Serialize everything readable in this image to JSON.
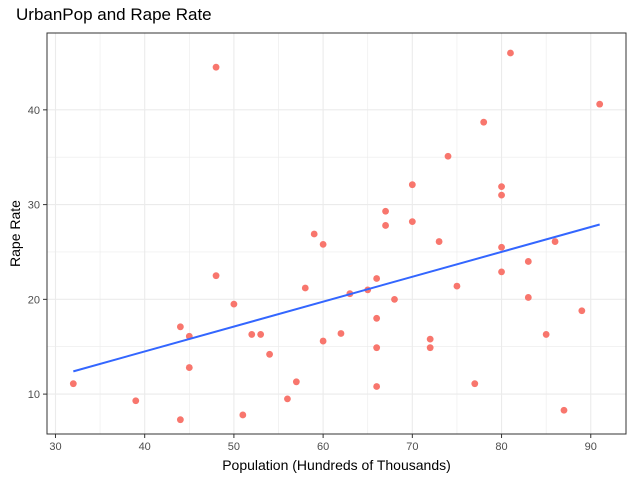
{
  "chart_data": {
    "type": "scatter",
    "title": "UrbanPop and Rape Rate",
    "xlabel": "Population (Hundreds of Thousands)",
    "ylabel": "Rape Rate",
    "xlim": [
      29.05,
      93.95
    ],
    "ylim": [
      5.79,
      48.11
    ],
    "xticks": [
      30,
      40,
      50,
      60,
      70,
      80,
      90
    ],
    "yticks": [
      10,
      20,
      30,
      40
    ],
    "grid": true,
    "point_color": "#F8766D",
    "line_color": "#3366FF",
    "points": [
      {
        "x": 32,
        "y": 11.1
      },
      {
        "x": 39,
        "y": 9.3
      },
      {
        "x": 44,
        "y": 7.3
      },
      {
        "x": 44,
        "y": 17.1
      },
      {
        "x": 45,
        "y": 16.1
      },
      {
        "x": 45,
        "y": 12.8
      },
      {
        "x": 48,
        "y": 44.5
      },
      {
        "x": 48,
        "y": 22.5
      },
      {
        "x": 50,
        "y": 19.5
      },
      {
        "x": 51,
        "y": 7.8
      },
      {
        "x": 52,
        "y": 16.3
      },
      {
        "x": 53,
        "y": 16.3
      },
      {
        "x": 54,
        "y": 14.2
      },
      {
        "x": 56,
        "y": 9.5
      },
      {
        "x": 57,
        "y": 11.3
      },
      {
        "x": 58,
        "y": 21.2
      },
      {
        "x": 59,
        "y": 26.9
      },
      {
        "x": 60,
        "y": 25.8
      },
      {
        "x": 60,
        "y": 15.6
      },
      {
        "x": 62,
        "y": 16.4
      },
      {
        "x": 63,
        "y": 20.6
      },
      {
        "x": 65,
        "y": 21.0
      },
      {
        "x": 66,
        "y": 22.2
      },
      {
        "x": 66,
        "y": 18.0
      },
      {
        "x": 66,
        "y": 14.9
      },
      {
        "x": 66,
        "y": 10.8
      },
      {
        "x": 67,
        "y": 29.3
      },
      {
        "x": 67,
        "y": 27.8
      },
      {
        "x": 68,
        "y": 20.0
      },
      {
        "x": 70,
        "y": 32.1
      },
      {
        "x": 70,
        "y": 28.2
      },
      {
        "x": 72,
        "y": 15.8
      },
      {
        "x": 72,
        "y": 14.9
      },
      {
        "x": 73,
        "y": 26.1
      },
      {
        "x": 74,
        "y": 35.1
      },
      {
        "x": 75,
        "y": 21.4
      },
      {
        "x": 77,
        "y": 11.1
      },
      {
        "x": 78,
        "y": 38.7
      },
      {
        "x": 80,
        "y": 31.9
      },
      {
        "x": 80,
        "y": 31.0
      },
      {
        "x": 80,
        "y": 25.5
      },
      {
        "x": 80,
        "y": 22.9
      },
      {
        "x": 81,
        "y": 46.0
      },
      {
        "x": 83,
        "y": 24.0
      },
      {
        "x": 83,
        "y": 20.2
      },
      {
        "x": 85,
        "y": 16.3
      },
      {
        "x": 86,
        "y": 26.1
      },
      {
        "x": 87,
        "y": 8.3
      },
      {
        "x": 89,
        "y": 18.8
      },
      {
        "x": 91,
        "y": 40.6
      }
    ],
    "trend_line": {
      "x": [
        32,
        91
      ],
      "y": [
        12.4,
        27.9
      ]
    }
  }
}
